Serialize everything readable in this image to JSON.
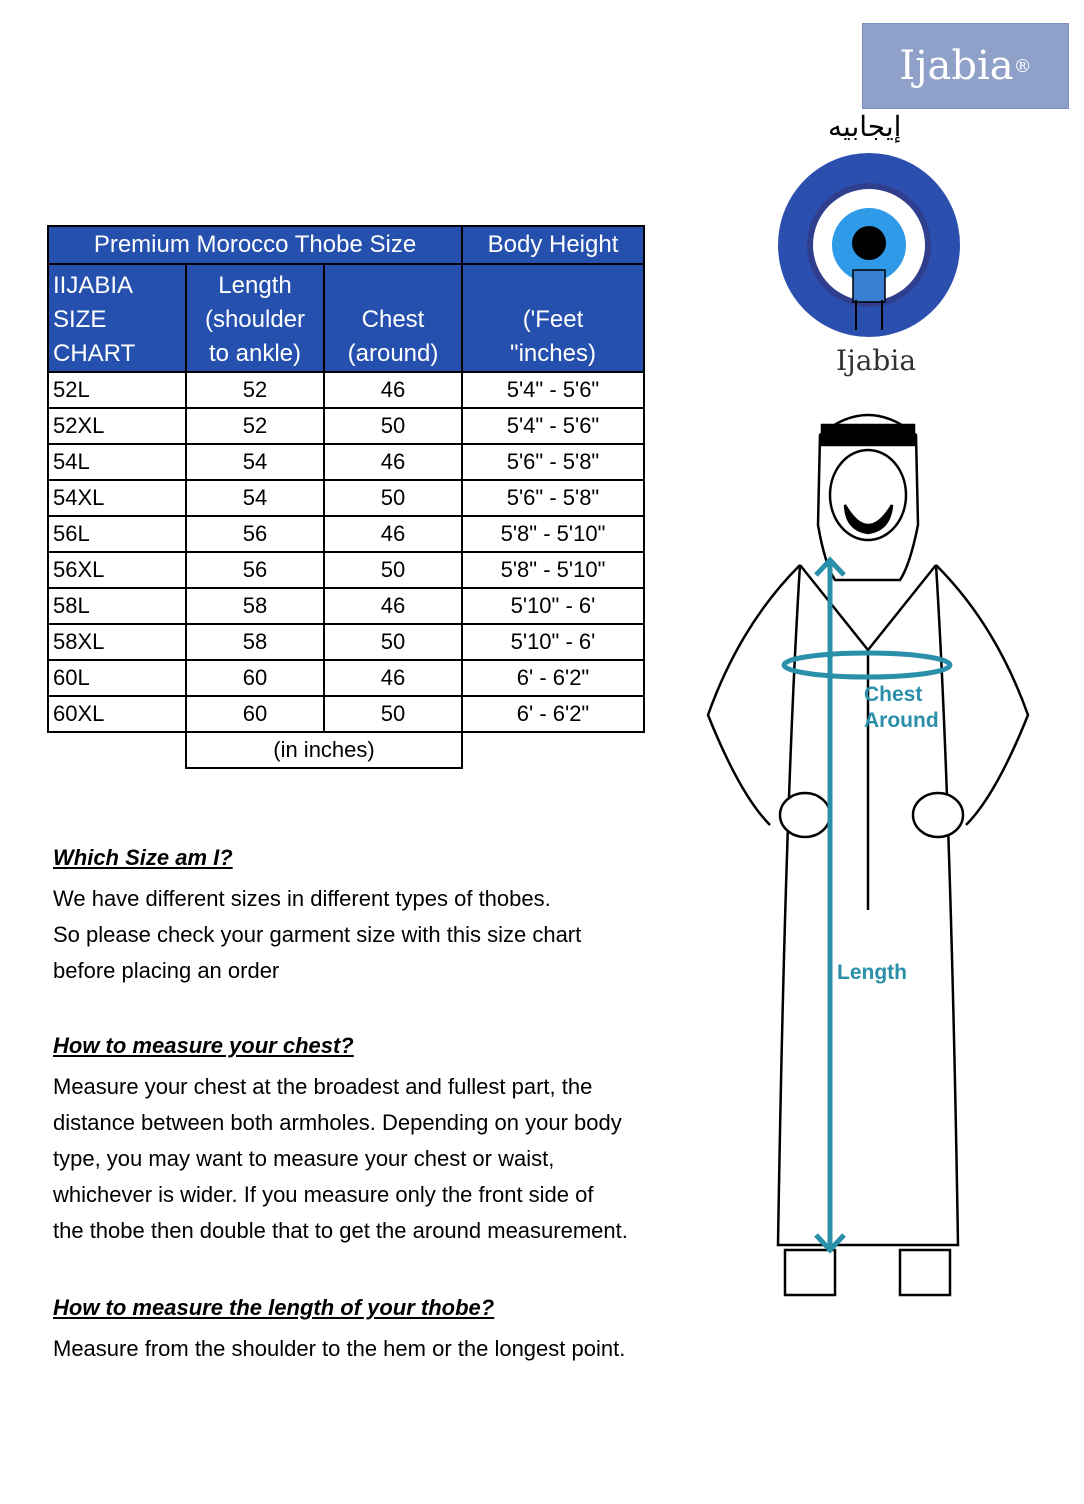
{
  "table": {
    "title": "Premium Morocco Thobe Size",
    "height_title": "Body Height",
    "col_size": [
      "IIJABIA",
      "SIZE",
      "CHART"
    ],
    "col_length": [
      "Length",
      "(shoulder",
      "to ankle)"
    ],
    "col_chest": [
      "Chest",
      "(around)"
    ],
    "col_height": [
      "('Feet",
      "\"inches)"
    ],
    "rows": [
      {
        "size": "52L",
        "length": "52",
        "chest": "46",
        "height": "5'4\" - 5'6\""
      },
      {
        "size": "52XL",
        "length": "52",
        "chest": "50",
        "height": "5'4\" - 5'6\""
      },
      {
        "size": "54L",
        "length": "54",
        "chest": "46",
        "height": "5'6\" - 5'8\""
      },
      {
        "size": "54XL",
        "length": "54",
        "chest": "50",
        "height": "5'6\" - 5'8\""
      },
      {
        "size": "56L",
        "length": "56",
        "chest": "46",
        "height": "5'8\" - 5'10\""
      },
      {
        "size": "56XL",
        "length": "56",
        "chest": "50",
        "height": "5'8\" - 5'10\""
      },
      {
        "size": "58L",
        "length": "58",
        "chest": "46",
        "height": "5'10\" - 6'"
      },
      {
        "size": "58XL",
        "length": "58",
        "chest": "50",
        "height": "5'10\" - 6'"
      },
      {
        "size": "60L",
        "length": "60",
        "chest": "46",
        "height": "6' - 6'2\""
      },
      {
        "size": "60XL",
        "length": "60",
        "chest": "50",
        "height": "6' - 6'2\""
      }
    ],
    "unit_note": "(in inches)"
  },
  "sections": [
    {
      "heading": "Which Size am I?",
      "lines": [
        "We have different sizes in different types of thobes.",
        "So please check your garment size with this size chart",
        "before placing an order"
      ]
    },
    {
      "heading": "How to measure your chest?",
      "lines": [
        "Measure your chest at the broadest and fullest part, the",
        "distance between both armholes. Depending on your body",
        "type, you may want to measure your chest or waist,",
        "whichever is wider. If you measure only the front side of",
        "the thobe then double that to get the around measurement."
      ]
    },
    {
      "heading": "How to measure the length of your thobe?",
      "lines": [
        "Measure from the shoulder to the hem or the longest point."
      ]
    }
  ],
  "brand": {
    "logo": "Ijabia",
    "arabic": "إيجابيه",
    "reg": "®"
  },
  "figure": {
    "chest_label": [
      "Chest",
      "Around"
    ],
    "length_label": "Length"
  },
  "colors": {
    "header_blue": "#2650ae",
    "logo_box": "#8fa0c9",
    "measure_teal": "#2a8fa8",
    "eye_blue": "#2a4fae",
    "eye_light": "#2f9ae8"
  }
}
